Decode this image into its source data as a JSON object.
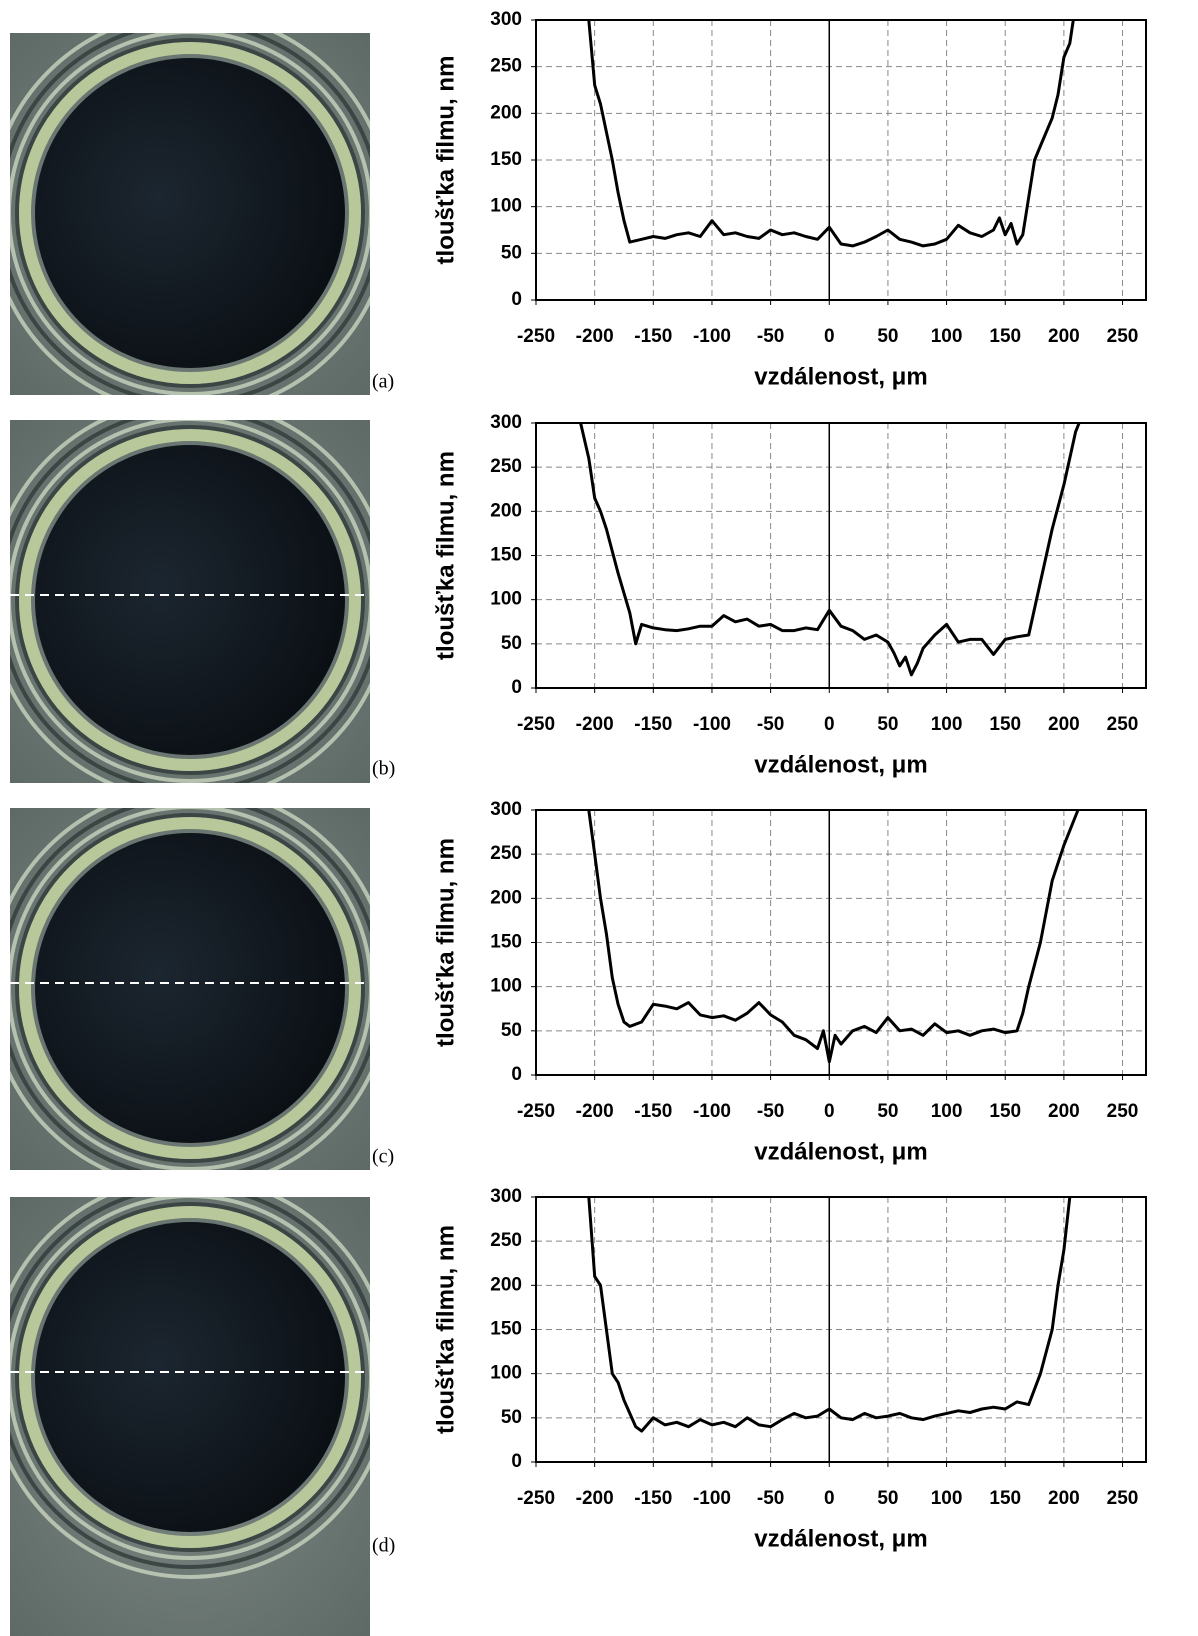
{
  "chart_data": [
    {
      "type": "line",
      "panel_label": "(a)",
      "x_label": "vzdálenost, μm",
      "y_label": "tloušťka filmu, nm",
      "xlim": [
        -250,
        270
      ],
      "ylim": [
        0,
        300
      ],
      "xticks": [
        -250,
        -200,
        -150,
        -100,
        -50,
        0,
        50,
        100,
        150,
        200,
        250
      ],
      "yticks": [
        0,
        50,
        100,
        150,
        200,
        250,
        300
      ],
      "grid": true,
      "color": "#000000",
      "x": [
        -205,
        -200,
        -195,
        -190,
        -185,
        -180,
        -175,
        -170,
        -160,
        -150,
        -140,
        -130,
        -120,
        -110,
        -100,
        -90,
        -80,
        -70,
        -60,
        -50,
        -40,
        -30,
        -20,
        -10,
        0,
        10,
        20,
        30,
        40,
        50,
        60,
        70,
        80,
        90,
        100,
        110,
        120,
        130,
        140,
        145,
        150,
        155,
        160,
        165,
        170,
        175,
        180,
        185,
        190,
        195,
        200,
        205,
        208
      ],
      "values": [
        300,
        230,
        210,
        180,
        150,
        115,
        85,
        62,
        65,
        68,
        66,
        70,
        72,
        68,
        85,
        70,
        72,
        68,
        66,
        75,
        70,
        72,
        68,
        65,
        78,
        60,
        58,
        62,
        68,
        75,
        65,
        62,
        58,
        60,
        65,
        80,
        72,
        68,
        75,
        88,
        70,
        82,
        60,
        70,
        110,
        150,
        165,
        180,
        195,
        220,
        260,
        275,
        300
      ]
    },
    {
      "type": "line",
      "panel_label": "(b)",
      "x_label": "vzdálenost, μm",
      "y_label": "tloušťka filmu, nm",
      "xlim": [
        -250,
        270
      ],
      "ylim": [
        0,
        300
      ],
      "xticks": [
        -250,
        -200,
        -150,
        -100,
        -50,
        0,
        50,
        100,
        150,
        200,
        250
      ],
      "yticks": [
        0,
        50,
        100,
        150,
        200,
        250,
        300
      ],
      "grid": true,
      "color": "#000000",
      "x": [
        -212,
        -205,
        -200,
        -195,
        -190,
        -180,
        -170,
        -165,
        -160,
        -150,
        -140,
        -130,
        -120,
        -110,
        -100,
        -90,
        -80,
        -70,
        -60,
        -50,
        -40,
        -30,
        -20,
        -10,
        0,
        10,
        20,
        30,
        40,
        50,
        55,
        60,
        65,
        70,
        75,
        80,
        90,
        100,
        110,
        120,
        130,
        140,
        150,
        160,
        170,
        180,
        190,
        200,
        210,
        213
      ],
      "values": [
        300,
        260,
        215,
        200,
        180,
        130,
        85,
        50,
        72,
        68,
        66,
        65,
        67,
        70,
        70,
        82,
        75,
        78,
        70,
        72,
        65,
        65,
        68,
        66,
        88,
        70,
        65,
        55,
        60,
        52,
        40,
        25,
        35,
        15,
        28,
        45,
        60,
        72,
        52,
        55,
        55,
        38,
        55,
        58,
        60,
        120,
        180,
        230,
        290,
        300
      ]
    },
    {
      "type": "line",
      "panel_label": "(c)",
      "x_label": "vzdálenost, μm",
      "y_label": "tloušťka filmu, nm",
      "xlim": [
        -250,
        270
      ],
      "ylim": [
        0,
        300
      ],
      "xticks": [
        -250,
        -200,
        -150,
        -100,
        -50,
        0,
        50,
        100,
        150,
        200,
        250
      ],
      "yticks": [
        0,
        50,
        100,
        150,
        200,
        250,
        300
      ],
      "grid": true,
      "color": "#000000",
      "x": [
        -205,
        -200,
        -195,
        -190,
        -185,
        -180,
        -175,
        -170,
        -160,
        -150,
        -140,
        -130,
        -120,
        -110,
        -100,
        -90,
        -80,
        -70,
        -60,
        -50,
        -40,
        -30,
        -20,
        -10,
        -5,
        0,
        5,
        10,
        20,
        30,
        40,
        50,
        60,
        70,
        80,
        90,
        100,
        110,
        120,
        130,
        140,
        150,
        160,
        165,
        170,
        180,
        190,
        200,
        212
      ],
      "values": [
        300,
        250,
        200,
        160,
        110,
        80,
        60,
        55,
        60,
        80,
        78,
        75,
        82,
        68,
        65,
        67,
        62,
        70,
        82,
        68,
        60,
        45,
        40,
        30,
        50,
        15,
        45,
        35,
        50,
        55,
        48,
        65,
        50,
        52,
        45,
        58,
        48,
        50,
        45,
        50,
        52,
        48,
        50,
        70,
        100,
        150,
        220,
        260,
        300
      ]
    },
    {
      "type": "line",
      "panel_label": "(d)",
      "x_label": "vzdálenost, μm",
      "y_label": "tloušťka filmu, nm",
      "xlim": [
        -250,
        270
      ],
      "ylim": [
        0,
        300
      ],
      "xticks": [
        -250,
        -200,
        -150,
        -100,
        -50,
        0,
        50,
        100,
        150,
        200,
        250
      ],
      "yticks": [
        0,
        50,
        100,
        150,
        200,
        250,
        300
      ],
      "grid": true,
      "color": "#000000",
      "x": [
        -205,
        -200,
        -195,
        -190,
        -185,
        -180,
        -175,
        -170,
        -165,
        -160,
        -150,
        -140,
        -130,
        -120,
        -110,
        -100,
        -90,
        -80,
        -70,
        -60,
        -50,
        -40,
        -30,
        -20,
        -10,
        0,
        10,
        20,
        30,
        40,
        50,
        60,
        70,
        80,
        90,
        100,
        110,
        120,
        130,
        140,
        150,
        160,
        170,
        180,
        190,
        195,
        200,
        205
      ],
      "values": [
        300,
        210,
        200,
        150,
        100,
        90,
        70,
        55,
        40,
        35,
        50,
        42,
        45,
        40,
        48,
        42,
        45,
        40,
        50,
        42,
        40,
        48,
        55,
        50,
        52,
        60,
        50,
        48,
        55,
        50,
        52,
        55,
        50,
        48,
        52,
        55,
        58,
        56,
        60,
        62,
        60,
        68,
        65,
        100,
        150,
        200,
        240,
        300
      ]
    }
  ]
}
